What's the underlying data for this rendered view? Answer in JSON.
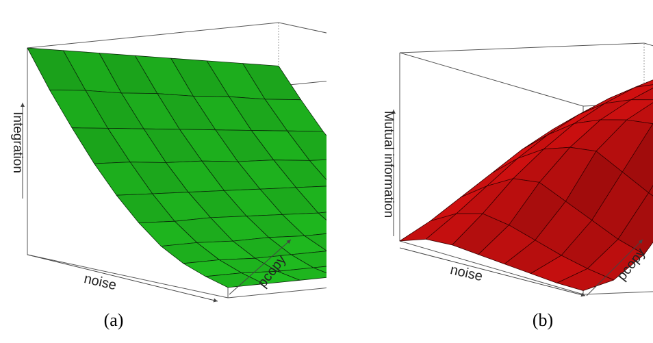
{
  "chart_data": [
    {
      "type": "surface3d",
      "panel_label": "(a)",
      "xlabel": "noise",
      "ylabel": "pcopy",
      "zlabel": "Integration",
      "surface_color": "#22cc22",
      "grid_color": "#0a2a0a",
      "z_grid": [
        [
          1.0,
          0.97,
          0.94,
          0.91,
          0.88,
          0.85,
          0.82,
          0.79
        ],
        [
          0.82,
          0.8,
          0.77,
          0.75,
          0.72,
          0.7,
          0.67,
          0.65
        ],
        [
          0.66,
          0.64,
          0.62,
          0.6,
          0.58,
          0.56,
          0.54,
          0.52
        ],
        [
          0.51,
          0.5,
          0.48,
          0.47,
          0.45,
          0.44,
          0.42,
          0.41
        ],
        [
          0.38,
          0.37,
          0.36,
          0.35,
          0.34,
          0.33,
          0.32,
          0.31
        ],
        [
          0.27,
          0.26,
          0.26,
          0.25,
          0.24,
          0.23,
          0.23,
          0.22
        ],
        [
          0.18,
          0.18,
          0.17,
          0.17,
          0.16,
          0.16,
          0.15,
          0.15
        ],
        [
          0.12,
          0.12,
          0.11,
          0.11,
          0.11,
          0.1,
          0.1,
          0.1
        ],
        [
          0.08,
          0.08,
          0.07,
          0.07,
          0.07,
          0.07,
          0.06,
          0.06
        ],
        [
          0.05,
          0.05,
          0.05,
          0.05,
          0.04,
          0.04,
          0.04,
          0.04
        ]
      ]
    },
    {
      "type": "surface3d",
      "panel_label": "(b)",
      "xlabel": "noise",
      "ylabel": "pcopy",
      "zlabel": "Mutual information",
      "surface_color": "#dd1111",
      "grid_color": "#3a0000",
      "z_grid": [
        [
          0.0,
          0.1,
          0.22,
          0.34,
          0.46,
          0.56,
          0.64,
          0.7,
          0.74
        ],
        [
          0.05,
          0.18,
          0.32,
          0.46,
          0.58,
          0.68,
          0.76,
          0.82,
          0.86
        ],
        [
          0.06,
          0.22,
          0.4,
          0.55,
          0.68,
          0.78,
          0.86,
          0.92,
          0.95
        ],
        [
          0.05,
          0.2,
          0.42,
          0.6,
          0.74,
          0.84,
          0.92,
          0.97,
          1.0
        ],
        [
          0.04,
          0.16,
          0.36,
          0.62,
          0.78,
          0.88,
          0.94,
          0.98,
          0.99
        ],
        [
          0.03,
          0.12,
          0.3,
          0.55,
          0.8,
          0.9,
          0.95,
          0.97,
          0.98
        ],
        [
          0.02,
          0.09,
          0.24,
          0.48,
          0.74,
          0.88,
          0.93,
          0.95,
          0.96
        ],
        [
          0.02,
          0.07,
          0.2,
          0.42,
          0.66,
          0.82,
          0.9,
          0.93,
          0.94
        ]
      ]
    }
  ]
}
